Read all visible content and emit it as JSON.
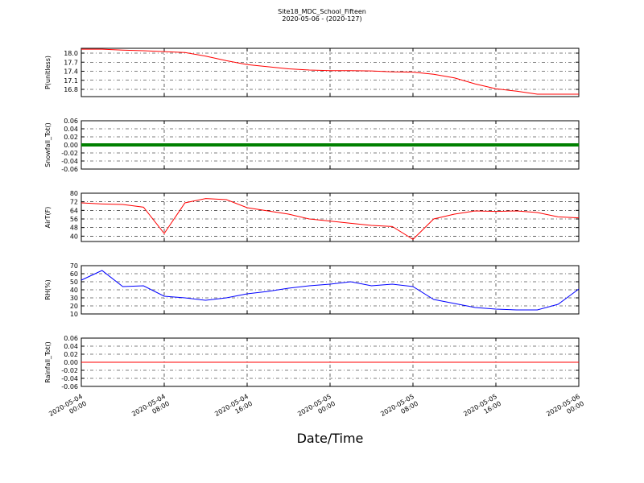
{
  "chart_data": [
    {
      "type": "line",
      "title": "Site18_MDC_School_Fifteen",
      "subtitle": "2020-05-06 - (2020-127)",
      "ylabel": "P(unitless)",
      "x": [
        "2020-05-04 00:00",
        "2020-05-04 02:00",
        "2020-05-04 04:00",
        "2020-05-04 06:00",
        "2020-05-04 08:00",
        "2020-05-04 10:00",
        "2020-05-04 12:00",
        "2020-05-04 14:00",
        "2020-05-04 16:00",
        "2020-05-04 18:00",
        "2020-05-04 20:00",
        "2020-05-04 22:00",
        "2020-05-05 00:00",
        "2020-05-05 02:00",
        "2020-05-05 04:00",
        "2020-05-05 06:00",
        "2020-05-05 08:00",
        "2020-05-05 10:00",
        "2020-05-05 12:00",
        "2020-05-05 14:00",
        "2020-05-05 16:00",
        "2020-05-05 18:00",
        "2020-05-05 20:00",
        "2020-05-05 22:00",
        "2020-05-06 00:00"
      ],
      "xlim": [
        "2020-05-04 00:00",
        "2020-05-06 00:00"
      ],
      "xticks": [
        "2020-05-04 00:00",
        "2020-05-04 08:00",
        "2020-05-04 16:00",
        "2020-05-05 00:00",
        "2020-05-05 08:00",
        "2020-05-05 16:00",
        "2020-05-06 00:00"
      ],
      "ylim": [
        16.56,
        18.16
      ],
      "yticks": [
        16.8,
        17.1,
        17.4,
        17.7,
        {
          "value": 18.0,
          "label": "18.0"
        }
      ],
      "grid": true,
      "series": [
        {
          "color": "#ff0000",
          "values": [
            18.13,
            18.13,
            18.1,
            18.08,
            18.05,
            18.02,
            17.9,
            17.75,
            17.62,
            17.55,
            17.48,
            17.44,
            17.42,
            17.42,
            17.41,
            17.38,
            17.37,
            17.3,
            17.18,
            16.98,
            16.82,
            16.74,
            16.64,
            16.64,
            16.64
          ]
        }
      ]
    },
    {
      "type": "line",
      "ylabel": "Snowfall_Tot()",
      "x": [
        "2020-05-04 00:00",
        "2020-05-04 02:00",
        "2020-05-04 04:00",
        "2020-05-04 06:00",
        "2020-05-04 08:00",
        "2020-05-04 10:00",
        "2020-05-04 12:00",
        "2020-05-04 14:00",
        "2020-05-04 16:00",
        "2020-05-04 18:00",
        "2020-05-04 20:00",
        "2020-05-04 22:00",
        "2020-05-05 00:00",
        "2020-05-05 02:00",
        "2020-05-05 04:00",
        "2020-05-05 06:00",
        "2020-05-05 08:00",
        "2020-05-05 10:00",
        "2020-05-05 12:00",
        "2020-05-05 14:00",
        "2020-05-05 16:00",
        "2020-05-05 18:00",
        "2020-05-05 20:00",
        "2020-05-05 22:00",
        "2020-05-06 00:00"
      ],
      "xlim": [
        "2020-05-04 00:00",
        "2020-05-06 00:00"
      ],
      "xticks": [
        "2020-05-04 00:00",
        "2020-05-04 08:00",
        "2020-05-04 16:00",
        "2020-05-05 00:00",
        "2020-05-05 08:00",
        "2020-05-05 16:00",
        "2020-05-06 00:00"
      ],
      "ylim": [
        -0.06,
        0.06
      ],
      "yticks": [
        -0.06,
        -0.04,
        -0.02,
        {
          "value": 0,
          "label": "0.00"
        },
        0.02,
        0.04,
        0.06
      ],
      "grid": true,
      "series": [
        {
          "color": "#008000",
          "values": [
            0,
            0,
            0,
            0,
            0,
            0,
            0,
            0,
            0,
            0,
            0,
            0,
            0,
            0,
            0,
            0,
            0,
            0,
            0,
            0,
            0,
            0,
            0,
            0,
            0
          ]
        }
      ]
    },
    {
      "type": "line",
      "ylabel": "AirT(F)",
      "x": [
        "2020-05-04 00:00",
        "2020-05-04 02:00",
        "2020-05-04 04:00",
        "2020-05-04 06:00",
        "2020-05-04 08:00",
        "2020-05-04 10:00",
        "2020-05-04 12:00",
        "2020-05-04 14:00",
        "2020-05-04 16:00",
        "2020-05-04 18:00",
        "2020-05-04 20:00",
        "2020-05-04 22:00",
        "2020-05-05 00:00",
        "2020-05-05 02:00",
        "2020-05-05 04:00",
        "2020-05-05 06:00",
        "2020-05-05 08:00",
        "2020-05-05 10:00",
        "2020-05-05 12:00",
        "2020-05-05 14:00",
        "2020-05-05 16:00",
        "2020-05-05 18:00",
        "2020-05-05 20:00",
        "2020-05-05 22:00",
        "2020-05-06 00:00"
      ],
      "xlim": [
        "2020-05-04 00:00",
        "2020-05-06 00:00"
      ],
      "xticks": [
        "2020-05-04 00:00",
        "2020-05-04 08:00",
        "2020-05-04 16:00",
        "2020-05-05 00:00",
        "2020-05-05 08:00",
        "2020-05-05 16:00",
        "2020-05-06 00:00"
      ],
      "ylim": [
        35,
        80
      ],
      "yticks": [
        40,
        48,
        56,
        64,
        72,
        80
      ],
      "grid": true,
      "series": [
        {
          "color": "#ff0000",
          "values": [
            71,
            70,
            69.5,
            67,
            42.5,
            71,
            75,
            74,
            66.5,
            63.5,
            60.5,
            56,
            54,
            52,
            50,
            49,
            37,
            56,
            60.5,
            63.5,
            63,
            63.5,
            62,
            58,
            57
          ]
        }
      ]
    },
    {
      "type": "line",
      "ylabel": "RH(%)",
      "x": [
        "2020-05-04 00:00",
        "2020-05-04 02:00",
        "2020-05-04 04:00",
        "2020-05-04 06:00",
        "2020-05-04 08:00",
        "2020-05-04 10:00",
        "2020-05-04 12:00",
        "2020-05-04 14:00",
        "2020-05-04 16:00",
        "2020-05-04 18:00",
        "2020-05-04 20:00",
        "2020-05-04 22:00",
        "2020-05-05 00:00",
        "2020-05-05 02:00",
        "2020-05-05 04:00",
        "2020-05-05 06:00",
        "2020-05-05 08:00",
        "2020-05-05 10:00",
        "2020-05-05 12:00",
        "2020-05-05 14:00",
        "2020-05-05 16:00",
        "2020-05-05 18:00",
        "2020-05-05 20:00",
        "2020-05-05 22:00",
        "2020-05-06 00:00"
      ],
      "xlim": [
        "2020-05-04 00:00",
        "2020-05-06 00:00"
      ],
      "xticks": [
        "2020-05-04 00:00",
        "2020-05-04 08:00",
        "2020-05-04 16:00",
        "2020-05-05 00:00",
        "2020-05-05 08:00",
        "2020-05-05 16:00",
        "2020-05-06 00:00"
      ],
      "ylim": [
        10,
        70
      ],
      "yticks": [
        10,
        20,
        30,
        40,
        50,
        60,
        70
      ],
      "grid": true,
      "series": [
        {
          "color": "#0000ff",
          "values": [
            52,
            64,
            44,
            45,
            32,
            30,
            27,
            30,
            35,
            38,
            42,
            45,
            47,
            50,
            45,
            47,
            44,
            28,
            23,
            18,
            16,
            15,
            15,
            22,
            41
          ]
        }
      ]
    },
    {
      "type": "line",
      "ylabel": "Rainfall_Tot()",
      "xlabel": "Date/Time",
      "x": [
        "2020-05-04 00:00",
        "2020-05-04 02:00",
        "2020-05-04 04:00",
        "2020-05-04 06:00",
        "2020-05-04 08:00",
        "2020-05-04 10:00",
        "2020-05-04 12:00",
        "2020-05-04 14:00",
        "2020-05-04 16:00",
        "2020-05-04 18:00",
        "2020-05-04 20:00",
        "2020-05-04 22:00",
        "2020-05-05 00:00",
        "2020-05-05 02:00",
        "2020-05-05 04:00",
        "2020-05-05 06:00",
        "2020-05-05 08:00",
        "2020-05-05 10:00",
        "2020-05-05 12:00",
        "2020-05-05 14:00",
        "2020-05-05 16:00",
        "2020-05-05 18:00",
        "2020-05-05 20:00",
        "2020-05-05 22:00",
        "2020-05-06 00:00"
      ],
      "xlim": [
        "2020-05-04 00:00",
        "2020-05-06 00:00"
      ],
      "xticks": [
        "2020-05-04 00:00",
        "2020-05-04 08:00",
        "2020-05-04 16:00",
        "2020-05-05 00:00",
        "2020-05-05 08:00",
        "2020-05-05 16:00",
        "2020-05-06 00:00"
      ],
      "ylim": [
        -0.06,
        0.06
      ],
      "yticks": [
        -0.06,
        -0.04,
        -0.02,
        {
          "value": 0,
          "label": "0.00"
        },
        0.02,
        0.04,
        0.06
      ],
      "grid": true,
      "series": [
        {
          "color": "#ff0000",
          "values": [
            0,
            0,
            0,
            0,
            0,
            0,
            0,
            0,
            0,
            0,
            0,
            0,
            0,
            0,
            0,
            0,
            0,
            0,
            0,
            0,
            0,
            0,
            0,
            0,
            0
          ]
        }
      ]
    }
  ]
}
